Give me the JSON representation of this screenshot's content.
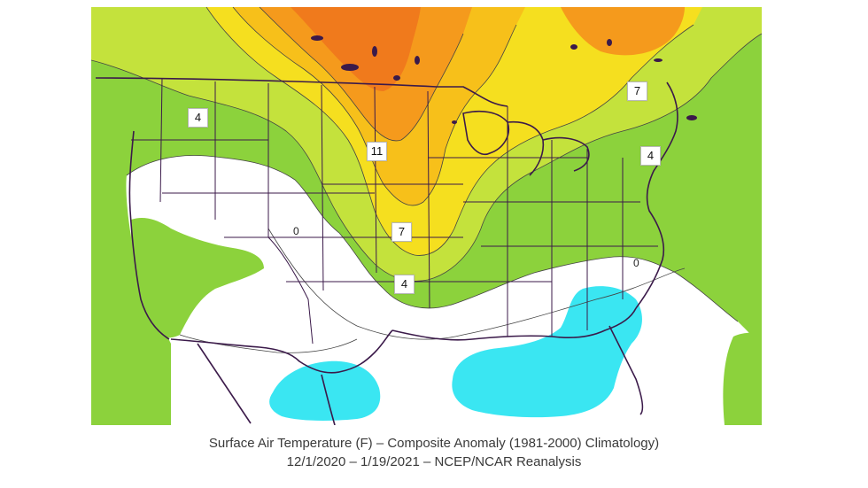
{
  "map": {
    "colors": {
      "green": "#8cd23c",
      "light_green": "#c4e23c",
      "yellow": "#f5df1f",
      "yellow_orange": "#f7c01a",
      "orange": "#f59a1c",
      "dark_orange": "#f07a1c",
      "cyan": "#3ae6f2",
      "white": "#ffffff",
      "border": "#3b1a4a",
      "contour": "#444444"
    },
    "contour_labels": [
      "4",
      "7",
      "4",
      "11",
      "7",
      "4"
    ],
    "zero_labels": [
      "0",
      "0"
    ]
  },
  "caption": {
    "line1": "Surface Air Temperature (F) – Composite Anomaly (1981-2000) Climatology)",
    "line2": "12/1/2020 – 1/19/2021 – NCEP/NCAR Reanalysis"
  }
}
